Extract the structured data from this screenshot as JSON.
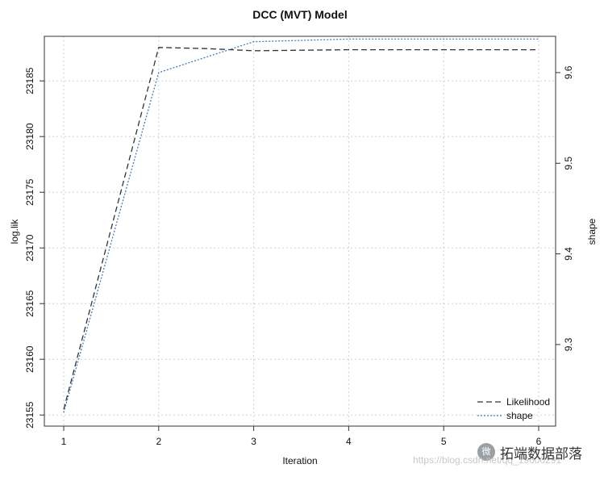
{
  "chart_data": {
    "type": "line",
    "title": "DCC (MVT) Model",
    "xlabel": "Iteration",
    "ylabel_left": "log.lik",
    "ylabel_right": "shape",
    "x": [
      1,
      2,
      3,
      4,
      5,
      6
    ],
    "x_ticks": [
      "1",
      "2",
      "3",
      "4",
      "5",
      "6"
    ],
    "x_range": [
      1,
      6
    ],
    "y_left_range": [
      23154,
      23189
    ],
    "y_left_ticks": [
      "23155",
      "23160",
      "23165",
      "23170",
      "23175",
      "23180",
      "23185"
    ],
    "y_right_range": [
      9.21,
      9.64
    ],
    "y_right_ticks": [
      "9.3",
      "9.4",
      "9.5",
      "9.6"
    ],
    "grid": true,
    "legend_position": "bottom-right",
    "series": [
      {
        "name": "Likelihood",
        "axis": "left",
        "style": "dashed",
        "color": "#333333",
        "x": [
          1,
          2,
          2.5,
          3,
          4,
          5,
          6
        ],
        "values": [
          23155.5,
          23188,
          23187.9,
          23187.7,
          23187.8,
          23187.8,
          23187.8
        ]
      },
      {
        "name": "shape",
        "axis": "right",
        "style": "dotted",
        "color": "#4a7ab8",
        "x": [
          1,
          2,
          3,
          4,
          5,
          6
        ],
        "values": [
          9.225,
          9.6,
          9.634,
          9.637,
          9.637,
          9.637
        ]
      }
    ]
  },
  "watermark": {
    "logo": "微",
    "brand": "拓端数据部落",
    "url": "https://blog.csdn.net/qq_19600291"
  }
}
